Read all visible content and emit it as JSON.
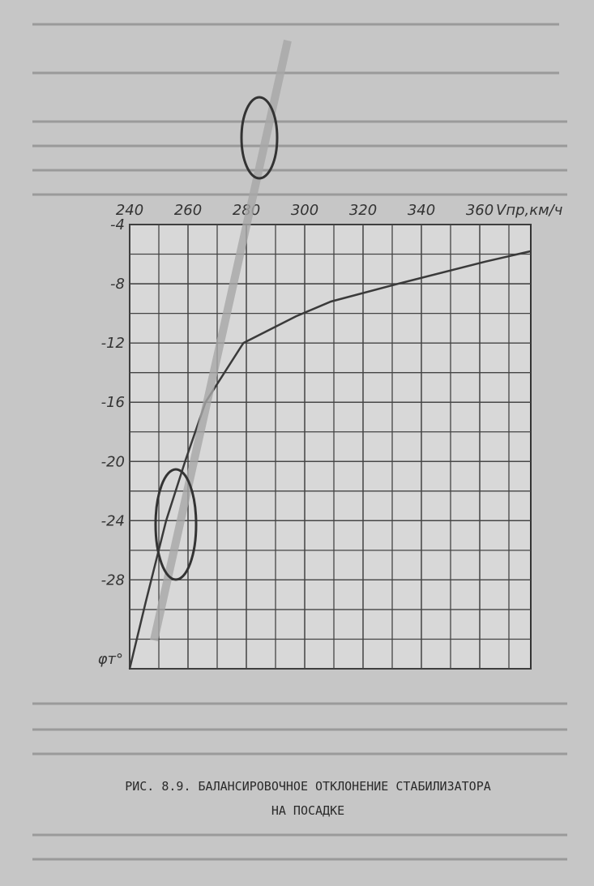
{
  "chart_data": {
    "type": "line",
    "caption": [
      "РИС. 8.9. БАЛАНСИРОВОЧНОЕ ОТКЛОНЕНИЕ СТАБИЛИЗАТОРА",
      "НА ПОСАДКЕ"
    ],
    "x_label": "Vпр,км/ч",
    "y_label": "φт°",
    "x": [
      240,
      245.5,
      252.5,
      259,
      266,
      279,
      297,
      309,
      332,
      362,
      377.5
    ],
    "series": [
      {
        "color": "#3a3a3a",
        "values": [
          -34,
          -29.5,
          -24,
          -20,
          -16,
          -12,
          -10.2,
          -9.2,
          -8,
          -6.5,
          -5.8
        ]
      }
    ],
    "xlim": [
      240,
      377.5
    ],
    "ylim": [
      -34,
      -4
    ],
    "xticks": [
      240,
      260,
      280,
      300,
      320,
      340,
      360
    ],
    "yticks": [
      -4,
      -8,
      -12,
      -16,
      -20,
      -24,
      -28
    ],
    "grid": true
  }
}
